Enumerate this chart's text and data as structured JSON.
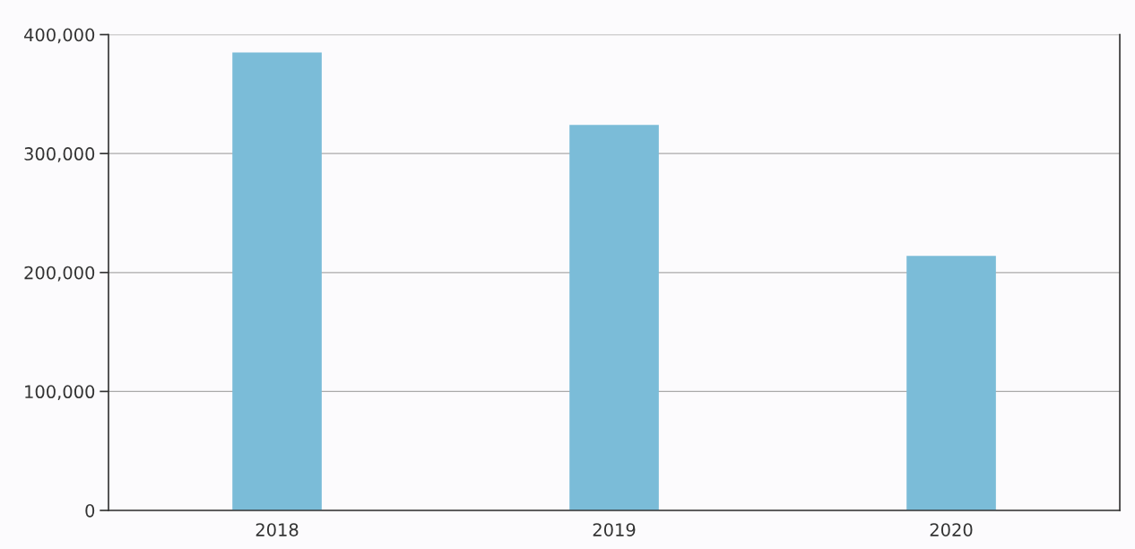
{
  "chart_data": {
    "type": "bar",
    "categories": [
      "2018",
      "2019",
      "2020"
    ],
    "values": [
      385000,
      324000,
      214000
    ],
    "color": "#7bbcd8",
    "ylim": [
      0,
      400000
    ],
    "yticks": [
      0,
      {
        "value": 100000,
        "label": "100,000"
      },
      {
        "value": 200000,
        "label": "200,000"
      },
      {
        "value": 300000,
        "label": "300,000"
      },
      {
        "value": 400000,
        "label": "400,000"
      }
    ],
    "grid": "y"
  }
}
